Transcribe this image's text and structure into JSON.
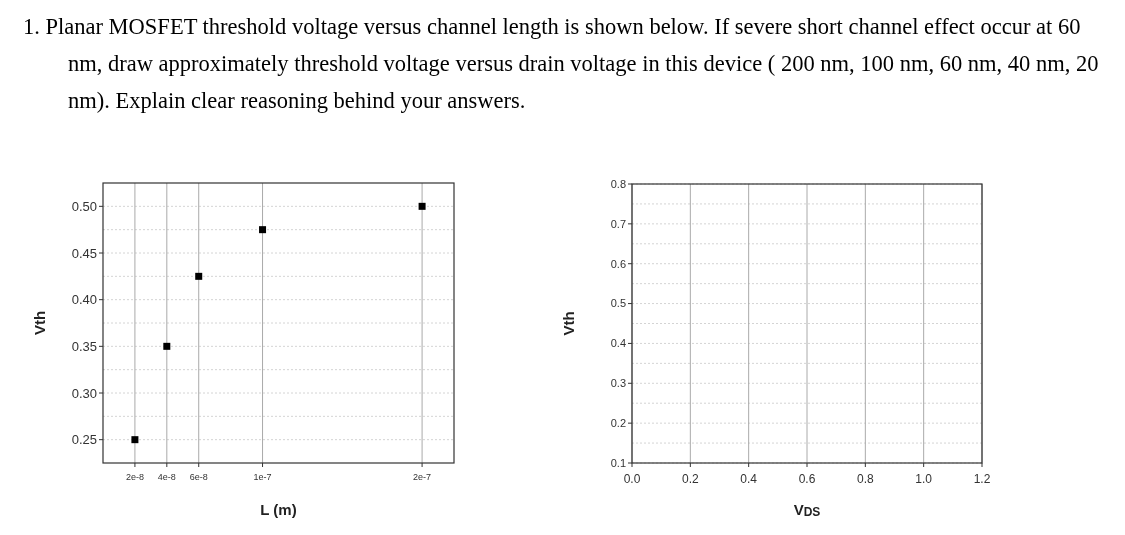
{
  "chart_data": [
    {
      "type": "scatter",
      "title": "1. Planar MOSFET threshold voltage versus channel length is shown below. If severe short channel effect occur at 60 nm, draw approximately threshold voltage versus drain voltage in this device ( 200 nm, 100 nm, 60 nm, 40 nm, 20 nm). Explain clear reasoning behind your answers.",
      "xlabel": "L (m)",
      "ylabel": "Vth",
      "marker": "square",
      "grid": true,
      "xlim": [
        0,
        2.2e-07
      ],
      "xticks": [
        {
          "value": 2e-08,
          "label": "2e-8"
        },
        {
          "value": 4e-08,
          "label": "4e-8"
        },
        {
          "value": 6e-08,
          "label": "6e-8"
        },
        {
          "value": 1e-07,
          "label": "1e-7"
        },
        {
          "value": 2e-07,
          "label": "2e-7"
        }
      ],
      "ylim": [
        0.225,
        0.525
      ],
      "yticks": [
        {
          "value": 0.25,
          "label": "0.25"
        },
        {
          "value": 0.3,
          "label": "0.30"
        },
        {
          "value": 0.35,
          "label": "0.35"
        },
        {
          "value": 0.4,
          "label": "0.40"
        },
        {
          "value": 0.45,
          "label": "0.45"
        },
        {
          "value": 0.5,
          "label": "0.50"
        }
      ],
      "series": [
        {
          "color": "#000000",
          "x": [
            2e-08,
            4e-08,
            6e-08,
            1e-07,
            2e-07
          ],
          "values": [
            0.25,
            0.35,
            0.425,
            0.475,
            0.5
          ]
        }
      ]
    },
    {
      "type": "scatter",
      "xlabel": "V$_{DS}$",
      "ylabel": "Vth",
      "grid": true,
      "xlim": [
        0,
        1.2
      ],
      "xticks": [
        {
          "value": 0,
          "label": "0.0"
        },
        {
          "value": 0.2,
          "label": "0.2"
        },
        {
          "value": 0.4,
          "label": "0.4"
        },
        {
          "value": 0.6,
          "label": "0.6"
        },
        {
          "value": 0.8,
          "label": "0.8"
        },
        {
          "value": 1,
          "label": "1.0"
        },
        {
          "value": 1.2,
          "label": "1.2"
        }
      ],
      "ylim": [
        0.1,
        0.8
      ],
      "yticks": [
        0.1,
        0.2,
        0.3,
        0.4,
        0.5,
        0.6,
        0.7,
        0.8
      ]
    }
  ]
}
